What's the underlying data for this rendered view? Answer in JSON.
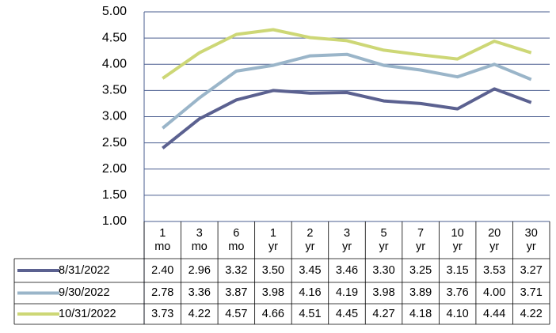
{
  "chart_data": {
    "type": "line",
    "categories": [
      "1 mo",
      "3 mo",
      "6 mo",
      "1 yr",
      "2 yr",
      "3 yr",
      "5 yr",
      "7 yr",
      "10 yr",
      "20 yr",
      "30 yr"
    ],
    "series": [
      {
        "name": "8/31/2022",
        "color": "#5b6190",
        "values": [
          2.4,
          2.96,
          3.32,
          3.5,
          3.45,
          3.46,
          3.3,
          3.25,
          3.15,
          3.53,
          3.27
        ],
        "value_labels": [
          "2.40",
          "2.96",
          "3.32",
          "3.50",
          "3.45",
          "3.46",
          "3.30",
          "3.25",
          "3.15",
          "3.53",
          "3.27"
        ]
      },
      {
        "name": "9/30/2022",
        "color": "#9ab5c9",
        "values": [
          2.78,
          3.36,
          3.87,
          3.98,
          4.16,
          4.19,
          3.98,
          3.89,
          3.76,
          4.0,
          3.71
        ],
        "value_labels": [
          "2.78",
          "3.36",
          "3.87",
          "3.98",
          "4.16",
          "4.19",
          "3.98",
          "3.89",
          "3.76",
          "4.00",
          "3.71"
        ]
      },
      {
        "name": "10/31/2022",
        "color": "#cdd776",
        "values": [
          3.73,
          4.22,
          4.57,
          4.66,
          4.51,
          4.45,
          4.27,
          4.18,
          4.1,
          4.44,
          4.22
        ],
        "value_labels": [
          "3.73",
          "4.22",
          "4.57",
          "4.66",
          "4.51",
          "4.45",
          "4.27",
          "4.18",
          "4.10",
          "4.44",
          "4.22"
        ]
      }
    ],
    "ylim": [
      1,
      5
    ],
    "yticks": [
      {
        "value": 1,
        "label": "1.00"
      },
      {
        "value": 1.5,
        "label": "1.50"
      },
      {
        "value": 2,
        "label": "2.00"
      },
      {
        "value": 2.5,
        "label": "2.50"
      },
      {
        "value": 3,
        "label": "3.00"
      },
      {
        "value": 3.5,
        "label": "3.50"
      },
      {
        "value": 4,
        "label": "4.00"
      },
      {
        "value": 4.5,
        "label": "4.50"
      },
      {
        "value": 5,
        "label": "5.00"
      }
    ],
    "grid": true
  }
}
